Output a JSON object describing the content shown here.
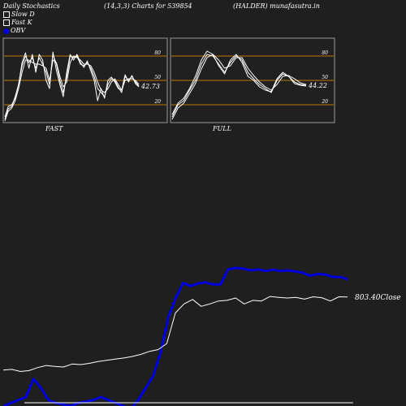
{
  "header": {
    "title": "Daily Stochastics",
    "params": "(14,3,3) Charts for 539854",
    "source": "(HALDER) munafasutra.in"
  },
  "legend": [
    {
      "label": "Slow  D",
      "marker": "box"
    },
    {
      "label": "Fast K",
      "marker": "box"
    },
    {
      "label": "OBV",
      "marker": "dot"
    }
  ],
  "colors": {
    "background": "#1f1f1f",
    "panel_bg": "#202020",
    "panel_border": "#999999",
    "reference_line": "#b8760a",
    "stoch_line": "#ffffff",
    "obv_line": "#0000dd",
    "price_line": "#ffffff"
  },
  "chart_data": [
    {
      "type": "line",
      "panel": "FAST",
      "ylim": [
        0,
        100
      ],
      "yticks": [
        "80",
        "50",
        "20"
      ],
      "reference_lines": [
        80,
        50,
        20
      ],
      "last_value_label": "42.73",
      "series": [
        {
          "values": [
            2,
            15,
            18,
            30,
            45,
            68,
            80,
            72,
            78,
            65,
            78,
            70,
            60,
            45,
            82,
            70,
            50,
            35,
            55,
            80,
            78,
            80,
            70,
            68,
            72,
            65,
            55,
            40,
            35,
            30,
            45,
            52,
            50,
            42,
            35,
            55,
            50,
            55,
            48,
            43
          ]
        },
        {
          "values": [
            5,
            18,
            20,
            28,
            45,
            72,
            84,
            65,
            82,
            60,
            82,
            75,
            50,
            40,
            85,
            62,
            45,
            30,
            60,
            82,
            75,
            82,
            72,
            66,
            74,
            62,
            50,
            25,
            40,
            28,
            50,
            54,
            48,
            40,
            38,
            57,
            48,
            56,
            46,
            42
          ]
        },
        {
          "values": [
            0,
            12,
            16,
            25,
            40,
            60,
            75,
            75,
            72,
            70,
            70,
            68,
            65,
            50,
            75,
            72,
            55,
            42,
            48,
            72,
            80,
            78,
            75,
            70,
            70,
            68,
            60,
            48,
            38,
            35,
            40,
            48,
            52,
            45,
            38,
            50,
            52,
            52,
            50,
            45
          ]
        }
      ]
    },
    {
      "type": "line",
      "panel": "FULL",
      "ylim": [
        0,
        100
      ],
      "yticks": [
        "80",
        "50",
        "20"
      ],
      "reference_lines": [
        80,
        50,
        20
      ],
      "last_value_label": "44.22",
      "series": [
        {
          "values": [
            5,
            20,
            25,
            38,
            50,
            70,
            82,
            80,
            70,
            60,
            72,
            80,
            75,
            60,
            52,
            45,
            40,
            35,
            50,
            58,
            55,
            48,
            45,
            44
          ]
        },
        {
          "values": [
            8,
            22,
            28,
            40,
            55,
            75,
            86,
            82,
            68,
            58,
            75,
            82,
            72,
            55,
            50,
            42,
            38,
            36,
            52,
            60,
            55,
            46,
            44,
            43
          ]
        },
        {
          "values": [
            2,
            16,
            22,
            34,
            46,
            64,
            78,
            82,
            75,
            65,
            68,
            78,
            78,
            65,
            56,
            48,
            42,
            38,
            45,
            55,
            56,
            52,
            47,
            45
          ]
        }
      ]
    },
    {
      "type": "line",
      "panel": "Price/OBV",
      "series": [
        {
          "name": "OBV",
          "values": [
            -60,
            -50,
            -40,
            -30,
            30,
            0,
            -40,
            -50,
            -55,
            -60,
            -50,
            -45,
            -40,
            -30,
            -40,
            -50,
            -60,
            -70,
            -40,
            0,
            40,
            120,
            235,
            300,
            350,
            340,
            348,
            352,
            345,
            345,
            395,
            400,
            398,
            392,
            395,
            390,
            394,
            390,
            392,
            388,
            384,
            374,
            380,
            378,
            370,
            370,
            362
          ]
        },
        {
          "name": "Close",
          "values": [
            60,
            62,
            55,
            58,
            68,
            75,
            72,
            70,
            80,
            78,
            82,
            88,
            92,
            96,
            100,
            105,
            112,
            122,
            128,
            148,
            250,
            280,
            295,
            272,
            280,
            290,
            292,
            300,
            280,
            292,
            290,
            305,
            302,
            300,
            302,
            296,
            304,
            301,
            290,
            304,
            303
          ]
        }
      ],
      "last_value_label": "803.40Close"
    }
  ],
  "panel_labels": [
    "FAST",
    "FULL"
  ]
}
